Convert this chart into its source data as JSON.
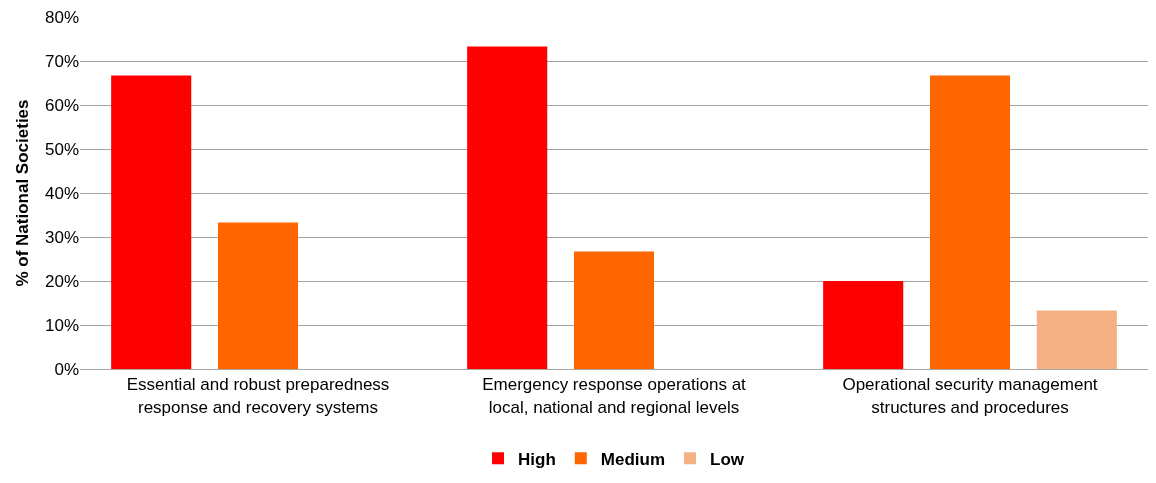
{
  "chart_data": {
    "type": "bar",
    "ylabel": "% of National Societies",
    "categories": [
      "Essential and robust preparedness\nresponse and recovery systems",
      "Emergency response operations at\nlocal, national and regional levels",
      "Operational security management\nstructures and procedures"
    ],
    "series": [
      {
        "name": "High",
        "color": "#ff0000",
        "values": [
          66.7,
          73.3,
          20
        ]
      },
      {
        "name": "Medium",
        "color": "#ff6600",
        "values": [
          33.3,
          26.7,
          66.7
        ]
      },
      {
        "name": "Low",
        "color": "#f4b183",
        "values": [
          0,
          0,
          13.3
        ]
      }
    ],
    "ylim": [
      0,
      80
    ],
    "yticks": [
      {
        "value": 0,
        "label": "0%"
      },
      {
        "value": 10,
        "label": "10%"
      },
      {
        "value": 20,
        "label": "20%"
      },
      {
        "value": 30,
        "label": "30%"
      },
      {
        "value": 40,
        "label": "40%"
      },
      {
        "value": 50,
        "label": "50%"
      },
      {
        "value": 60,
        "label": "60%"
      },
      {
        "value": 70,
        "label": "70%"
      },
      {
        "value": 80,
        "label": "80%"
      }
    ],
    "grid": "y",
    "legend": "bottom"
  }
}
